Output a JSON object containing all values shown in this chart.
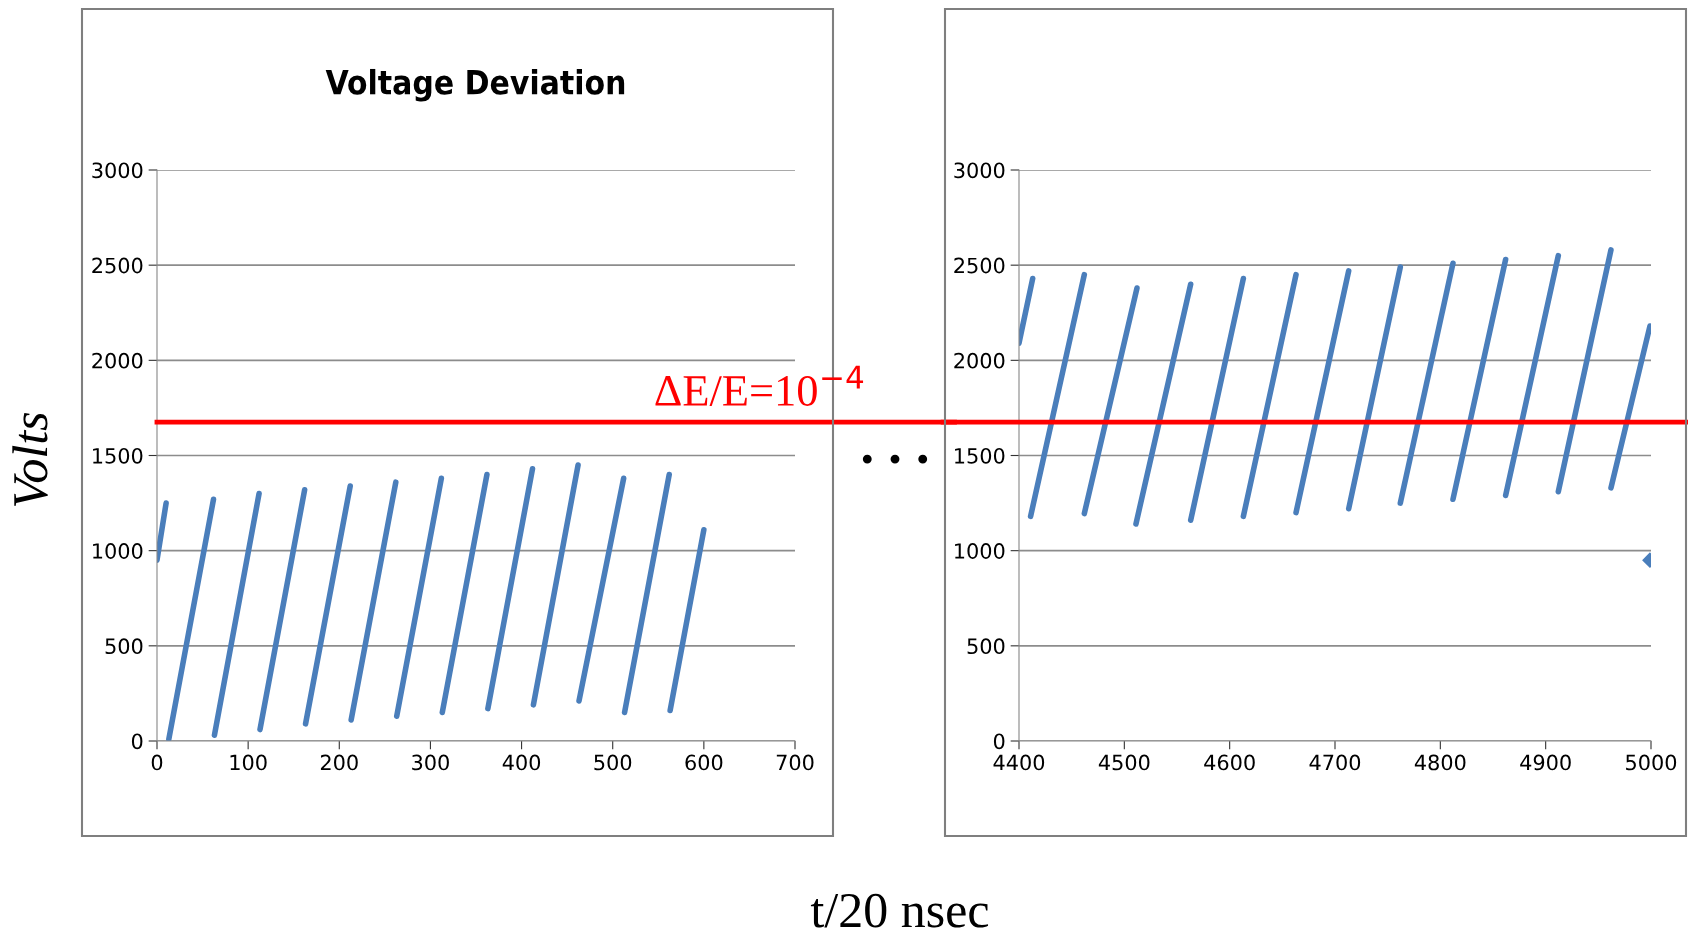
{
  "chart_data": [
    {
      "type": "line",
      "title": "Voltage Deviation",
      "ylabel": "Volts",
      "xlabel": "t/20 nsec",
      "xlim": [
        0,
        700
      ],
      "xticks": [
        0,
        100,
        200,
        300,
        400,
        500,
        600,
        700
      ],
      "ylim": [
        0,
        3000
      ],
      "yticks": [
        0,
        500,
        1000,
        1500,
        2000,
        2500,
        3000
      ],
      "grid": "y",
      "marker": "none",
      "line_style": "solid",
      "annotations": [
        "ΔE/E=10$^{−4}$"
      ],
      "series": [
        {
          "color": "#4a7ebb",
          "x": [
            0,
            10
          ],
          "values": [
            950,
            1250
          ]
        },
        {
          "color": "#4a7ebb",
          "x": [
            13,
            62
          ],
          "values": [
            10,
            1270
          ]
        },
        {
          "color": "#4a7ebb",
          "x": [
            63,
            112
          ],
          "values": [
            30,
            1300
          ]
        },
        {
          "color": "#4a7ebb",
          "x": [
            113,
            162
          ],
          "values": [
            60,
            1320
          ]
        },
        {
          "color": "#4a7ebb",
          "x": [
            163,
            212
          ],
          "values": [
            90,
            1340
          ]
        },
        {
          "color": "#4a7ebb",
          "x": [
            213,
            262
          ],
          "values": [
            110,
            1360
          ]
        },
        {
          "color": "#4a7ebb",
          "x": [
            263,
            312
          ],
          "values": [
            130,
            1380
          ]
        },
        {
          "color": "#4a7ebb",
          "x": [
            313,
            362
          ],
          "values": [
            150,
            1400
          ]
        },
        {
          "color": "#4a7ebb",
          "x": [
            363,
            412
          ],
          "values": [
            170,
            1430
          ]
        },
        {
          "color": "#4a7ebb",
          "x": [
            413,
            462
          ],
          "values": [
            190,
            1450
          ]
        },
        {
          "color": "#4a7ebb",
          "x": [
            463,
            512
          ],
          "values": [
            210,
            1380
          ]
        },
        {
          "color": "#4a7ebb",
          "x": [
            513,
            562
          ],
          "values": [
            150,
            1400
          ]
        },
        {
          "color": "#4a7ebb",
          "x": [
            563,
            600
          ],
          "values": [
            160,
            1110
          ]
        }
      ],
      "ref_lines": [
        {
          "axis": "y",
          "value": 1675,
          "color": "#ff0000"
        }
      ]
    },
    {
      "type": "line",
      "xlim": [
        4400,
        5000
      ],
      "xticks": [
        4400,
        4500,
        4600,
        4700,
        4800,
        4900,
        5000
      ],
      "ylim": [
        0,
        3000
      ],
      "yticks": [
        0,
        500,
        1000,
        1500,
        2000,
        2500,
        3000
      ],
      "grid": "y",
      "marker": "none",
      "line_style": "solid",
      "annotations": [
        "• • •"
      ],
      "series": [
        {
          "color": "#4a7ebb",
          "x": [
            4400,
            4413
          ],
          "values": [
            2090,
            2430
          ]
        },
        {
          "color": "#4a7ebb",
          "x": [
            4411,
            4462
          ],
          "values": [
            1180,
            2450
          ]
        },
        {
          "color": "#4a7ebb",
          "x": [
            4462,
            4512
          ],
          "values": [
            1195,
            2380
          ]
        },
        {
          "color": "#4a7ebb",
          "x": [
            4511,
            4563
          ],
          "values": [
            1140,
            2400
          ]
        },
        {
          "color": "#4a7ebb",
          "x": [
            4563,
            4613
          ],
          "values": [
            1160,
            2430
          ]
        },
        {
          "color": "#4a7ebb",
          "x": [
            4613,
            4663
          ],
          "values": [
            1180,
            2450
          ]
        },
        {
          "color": "#4a7ebb",
          "x": [
            4663,
            4713
          ],
          "values": [
            1200,
            2470
          ]
        },
        {
          "color": "#4a7ebb",
          "x": [
            4713,
            4762
          ],
          "values": [
            1220,
            2490
          ]
        },
        {
          "color": "#4a7ebb",
          "x": [
            4762,
            4812
          ],
          "values": [
            1250,
            2510
          ]
        },
        {
          "color": "#4a7ebb",
          "x": [
            4812,
            4862
          ],
          "values": [
            1270,
            2530
          ]
        },
        {
          "color": "#4a7ebb",
          "x": [
            4862,
            4912
          ],
          "values": [
            1290,
            2550
          ]
        },
        {
          "color": "#4a7ebb",
          "x": [
            4912,
            4962
          ],
          "values": [
            1310,
            2580
          ]
        },
        {
          "color": "#4a7ebb",
          "x": [
            4962,
            4999
          ],
          "values": [
            1330,
            2180
          ]
        },
        {
          "color": "#4a7ebb",
          "type": "scatter",
          "marker": "diamond",
          "x": [
            4999
          ],
          "values": [
            950
          ]
        }
      ],
      "ref_lines": [
        {
          "axis": "y",
          "value": 1675,
          "color": "#ff0000"
        }
      ]
    }
  ]
}
